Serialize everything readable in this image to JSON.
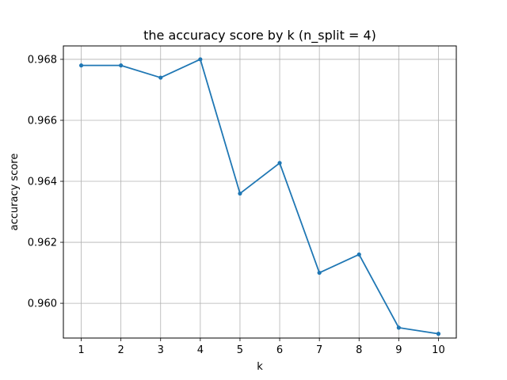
{
  "chart_data": {
    "type": "line",
    "title": "the accuracy score by k (n_split = 4)",
    "xlabel": "k",
    "ylabel": "accuracy score",
    "x": [
      1,
      2,
      3,
      4,
      5,
      6,
      7,
      8,
      9,
      10
    ],
    "series": [
      {
        "values": [
          0.9678,
          0.9678,
          0.9674,
          0.968,
          0.9636,
          0.9646,
          0.961,
          0.9616,
          0.9592,
          0.959
        ],
        "color": "#1f77b4",
        "marker": "circle"
      }
    ],
    "xticks": [
      "1",
      "2",
      "3",
      "4",
      "5",
      "6",
      "7",
      "8",
      "9",
      "10"
    ],
    "yticks": [
      {
        "value": 0.96,
        "label": "0.960"
      },
      {
        "value": 0.962,
        "label": "0.962"
      },
      {
        "value": 0.964,
        "label": "0.964"
      },
      {
        "value": 0.966,
        "label": "0.966"
      },
      {
        "value": 0.968,
        "label": "0.968"
      }
    ],
    "xlim": [
      0.55,
      10.45
    ],
    "ylim": [
      0.95886,
      0.96844
    ],
    "grid": true,
    "grid_color": "#b0b0b0"
  }
}
